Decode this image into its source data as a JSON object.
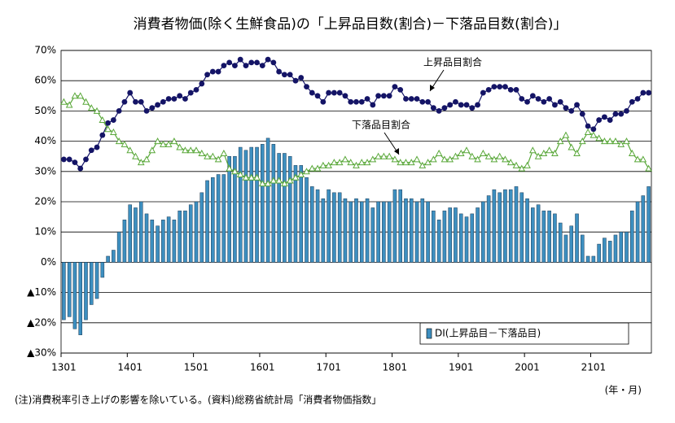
{
  "chart_data": {
    "type": "bar",
    "title": "消費者物価(除く生鮮食品)の「上昇品目数(割合)－下落品目数(割合)」",
    "categories": [
      "1301",
      null,
      null,
      null,
      null,
      null,
      null,
      null,
      null,
      null,
      null,
      null,
      "1401",
      null,
      null,
      null,
      null,
      null,
      null,
      null,
      null,
      null,
      null,
      null,
      "1501",
      null,
      null,
      null,
      null,
      null,
      null,
      null,
      null,
      null,
      null,
      null,
      "1601",
      null,
      null,
      null,
      null,
      null,
      null,
      null,
      null,
      null,
      null,
      null,
      "1701",
      null,
      null,
      null,
      null,
      null,
      null,
      null,
      null,
      null,
      null,
      null,
      "1801",
      null,
      null,
      null,
      null,
      null,
      null,
      null,
      null,
      null,
      null,
      null,
      "1901",
      null,
      null,
      null,
      null,
      null,
      null,
      null,
      null,
      null,
      null,
      null,
      "2001",
      null,
      null,
      null,
      null,
      null,
      null,
      null,
      null,
      null,
      null,
      null,
      "2101",
      null,
      null,
      null,
      null,
      null,
      null,
      null,
      null,
      null,
      null
    ],
    "series": [
      {
        "name": "DI(上昇品目－下落品目)",
        "type": "bar",
        "color": "#3d8fc0",
        "values": [
          -19,
          -18,
          -22,
          -24,
          -19,
          -14,
          -12,
          -5,
          2,
          4,
          10,
          14,
          19,
          18,
          20,
          16,
          14,
          12,
          14,
          15,
          14,
          17,
          17,
          19,
          20,
          23,
          27,
          28,
          29,
          29,
          35,
          35,
          38,
          37,
          38,
          38,
          39,
          41,
          39,
          36,
          36,
          35,
          32,
          32,
          28,
          25,
          24,
          21,
          24,
          23,
          23,
          21,
          20,
          21,
          20,
          21,
          18,
          20,
          20,
          20,
          24,
          24,
          21,
          21,
          20,
          21,
          20,
          17,
          14,
          17,
          18,
          18,
          16,
          15,
          16,
          18,
          20,
          22,
          24,
          23,
          24,
          24,
          25,
          23,
          21,
          18,
          19,
          17,
          17,
          16,
          13,
          9,
          12,
          16,
          9,
          2,
          2,
          6,
          8,
          7,
          9,
          10,
          10,
          17,
          20,
          22,
          25
        ]
      },
      {
        "name": "上昇品目割合",
        "type": "line",
        "marker": "circle",
        "color": "#141466",
        "values": [
          34,
          34,
          33,
          31,
          34,
          37,
          38,
          42,
          46,
          47,
          50,
          53,
          56,
          53,
          53,
          50,
          51,
          52,
          53,
          54,
          54,
          55,
          54,
          56,
          57,
          59,
          62,
          63,
          63,
          65,
          66,
          65,
          67,
          65,
          66,
          66,
          65,
          67,
          66,
          63,
          62,
          62,
          60,
          61,
          58,
          56,
          55,
          53,
          56,
          56,
          56,
          55,
          53,
          53,
          53,
          54,
          52,
          55,
          55,
          55,
          58,
          57,
          54,
          54,
          54,
          53,
          53,
          51,
          50,
          51,
          52,
          53,
          52,
          52,
          51,
          52,
          56,
          57,
          58,
          58,
          58,
          57,
          57,
          54,
          53,
          55,
          54,
          53,
          54,
          52,
          53,
          51,
          50,
          52,
          49,
          45,
          44,
          47,
          48,
          47,
          49,
          49,
          50,
          53,
          54,
          56,
          56
        ]
      },
      {
        "name": "下落品目割合",
        "type": "line",
        "marker": "triangle",
        "color": "#5aa83a",
        "values": [
          53,
          52,
          55,
          55,
          53,
          51,
          50,
          47,
          44,
          43,
          40,
          39,
          37,
          35,
          33,
          34,
          37,
          40,
          39,
          39,
          40,
          38,
          37,
          37,
          37,
          36,
          35,
          35,
          34,
          36,
          31,
          30,
          29,
          28,
          28,
          28,
          26,
          26,
          27,
          27,
          26,
          27,
          28,
          29,
          30,
          31,
          31,
          32,
          32,
          33,
          33,
          34,
          33,
          32,
          33,
          33,
          34,
          35,
          35,
          35,
          34,
          33,
          33,
          33,
          34,
          32,
          33,
          34,
          36,
          34,
          34,
          35,
          36,
          37,
          35,
          34,
          36,
          35,
          34,
          35,
          34,
          33,
          32,
          31,
          32,
          37,
          35,
          36,
          37,
          36,
          40,
          42,
          38,
          36,
          40,
          43,
          42,
          41,
          40,
          40,
          40,
          39,
          40,
          36,
          34,
          34,
          31
        ]
      }
    ],
    "ylim": [
      -30,
      70
    ],
    "yticks": [
      {
        "value": 70,
        "label": "70%"
      },
      {
        "value": 60,
        "label": "60%"
      },
      {
        "value": 50,
        "label": "50%"
      },
      {
        "value": 40,
        "label": "40%"
      },
      {
        "value": 30,
        "label": "30%"
      },
      {
        "value": 20,
        "label": "20%"
      },
      {
        "value": 10,
        "label": "10%"
      },
      {
        "value": 0,
        "label": "0%"
      },
      {
        "value": -10,
        "label": "▲10%"
      },
      {
        "value": -20,
        "label": "▲20%"
      },
      {
        "value": -30,
        "label": "▲30%"
      }
    ],
    "grid": true,
    "x_unit": "(年・月)",
    "note": "(注)消費税率引き上げの影響を除いている。(資料)総務省統計局「消費者物価指数」"
  }
}
